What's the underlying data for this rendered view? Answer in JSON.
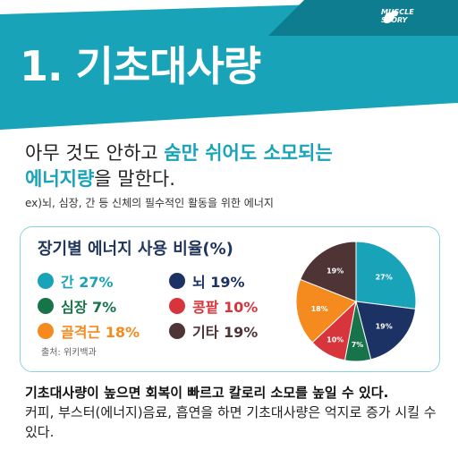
{
  "header": {
    "title": "1. 기초대사량",
    "brand_line1": "MUSCLE",
    "brand_line2": "STORY",
    "brand_icon": "muscle-arm-icon",
    "colors": {
      "teal": "#19a3b8",
      "dark": "#0d7d8f"
    }
  },
  "intro": {
    "text_before": "아무 것도 안하고 ",
    "highlight_a": "숨만 쉬어도 소모되는",
    "highlight_b": "에너지량",
    "text_after": "을 말한다.",
    "example": "ex)뇌, 심장, 간 등 신체의 필수적인 활동을 위한 에너지"
  },
  "card": {
    "source": "출처: 위키백과"
  },
  "chart_data": {
    "type": "pie",
    "title": "장기별 에너지 사용 비율(%)",
    "slices": [
      {
        "label": "간",
        "value": 27,
        "legend": "간 27%",
        "slice_label": "27%",
        "color": "#19a3b8",
        "label_color": "#ffffff"
      },
      {
        "label": "뇌",
        "value": 19,
        "legend": "뇌 19%",
        "slice_label": "19%",
        "color": "#1d3264",
        "label_color": "#ffffff"
      },
      {
        "label": "심장",
        "value": 7,
        "legend": "심장 7%",
        "slice_label": "7%",
        "color": "#17744a",
        "label_color": "#ffffff"
      },
      {
        "label": "콩팥",
        "value": 10,
        "legend": "콩팥 10%",
        "slice_label": "10%",
        "color": "#d8343c",
        "label_color": "#ffffff"
      },
      {
        "label": "골격근",
        "value": 18,
        "legend": "골격근 18%",
        "slice_label": "18%",
        "color": "#f58a1f",
        "label_color": "#ffffff"
      },
      {
        "label": "기타",
        "value": 19,
        "legend": "기타 19%",
        "slice_label": "19%",
        "color": "#4e3434",
        "label_color": "#ffffff"
      }
    ],
    "legend_placement": "left"
  },
  "footer": {
    "strong": "기초대사량이 높으면 회복이 빠르고 칼로리 소모를 높일 수 있다.",
    "para": "커피, 부스터(에너지)음료, 흡연을 하면 기초대사량은 억지로 증가 시킬 수 있다."
  }
}
